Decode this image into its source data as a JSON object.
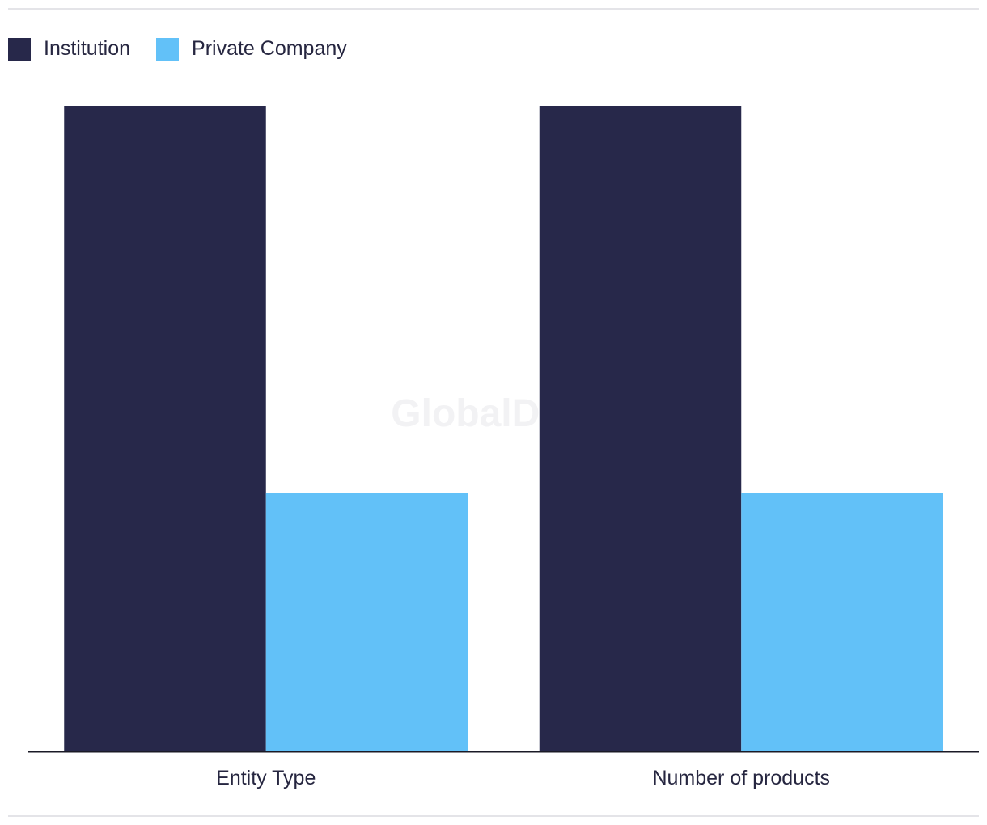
{
  "watermark": "GlobalData",
  "chart_data": {
    "type": "bar",
    "categories": [
      "Entity Type",
      "Number of products"
    ],
    "series": [
      {
        "name": "Institution",
        "values": [
          5,
          5
        ],
        "color": "#27284a"
      },
      {
        "name": "Private Company",
        "values": [
          2,
          2
        ],
        "color": "#62c1f8"
      }
    ],
    "ylim": [
      0,
      5
    ],
    "grid": false,
    "legend_position": "top-left",
    "xlabel": "",
    "ylabel": ""
  }
}
